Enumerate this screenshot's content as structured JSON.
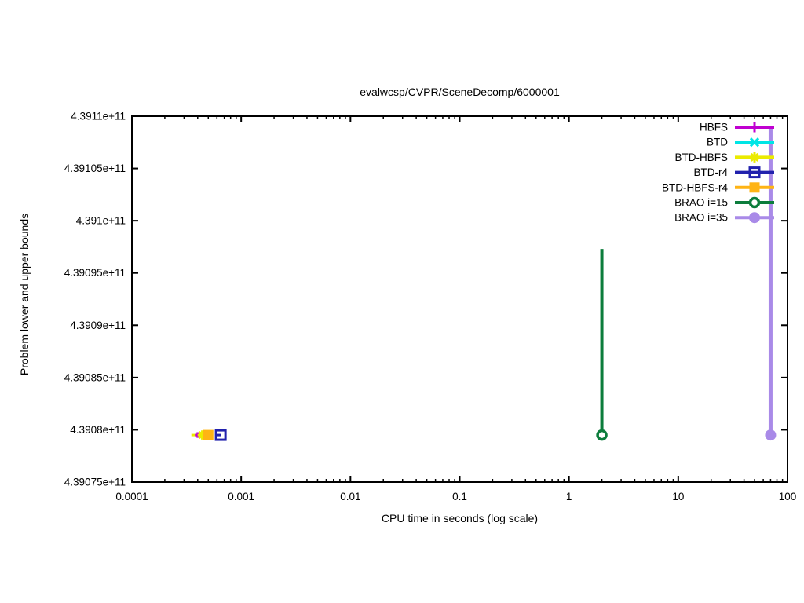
{
  "page": {
    "background": "#ffffff",
    "text_color": "#000000"
  },
  "chart_data": {
    "type": "line",
    "title": "evalwcsp/CVPR/SceneDecomp/6000001",
    "xlabel": "CPU time in seconds (log scale)",
    "ylabel": "Problem lower and upper bounds",
    "x_scale": "log",
    "y_scale": "linear",
    "xlim": [
      0.0001,
      100
    ],
    "ylim": [
      439075000000,
      439110000000
    ],
    "x_ticks": [
      0.0001,
      0.001,
      0.01,
      0.1,
      1,
      10,
      100
    ],
    "x_tick_labels": [
      "0.0001",
      "0.001",
      "0.01",
      "0.1",
      "1",
      "10",
      "100"
    ],
    "y_ticks": [
      439075000000,
      439080000000,
      439085000000,
      439090000000,
      439095000000,
      439100000000,
      439105000000,
      439110000000
    ],
    "y_tick_labels": [
      "4.39075e+11",
      "4.3908e+11",
      "4.39085e+11",
      "4.3909e+11",
      "4.39095e+11",
      "4.391e+11",
      "4.39105e+11",
      "4.3911e+11"
    ],
    "grid": false,
    "legend_position": "top-right-inside",
    "optimum_value": 439079500000,
    "series": [
      {
        "name": "HBFS",
        "color": "#c000d0",
        "marker": "plus",
        "point_size": 0.55,
        "line_width": 3,
        "points": [
          [
            0.0004,
            439079500000
          ]
        ],
        "h_segments": [],
        "v_segments": []
      },
      {
        "name": "BTD",
        "color": "#00e5e5",
        "marker": "x",
        "point_size": 1,
        "line_width": 3,
        "points": [],
        "h_segments": [],
        "v_segments": [],
        "note": "marker not visibly distinct; hidden behind cluster at ~0.0005 s"
      },
      {
        "name": "BTD-HBFS",
        "color": "#ebeb00",
        "marker": "asterisk",
        "point_size": 0.9,
        "line_width": 3,
        "points": [
          [
            0.00044,
            439079500000
          ]
        ],
        "h_segments": [
          [
            0.00035,
            0.00044,
            439079500000
          ]
        ],
        "v_segments": []
      },
      {
        "name": "BTD-r4",
        "color": "#2121ad",
        "marker": "square-open",
        "point_size": 1,
        "line_width": 3,
        "points": [
          [
            0.00065,
            439079500000
          ]
        ],
        "h_segments": [
          [
            0.00059,
            0.00065,
            439079500000
          ]
        ],
        "v_segments": []
      },
      {
        "name": "BTD-HBFS-r4",
        "color": "#ffb414",
        "marker": "square-filled",
        "point_size": 1,
        "line_width": 3,
        "points": [
          [
            0.0005,
            439079500000
          ]
        ],
        "h_segments": [],
        "v_segments": []
      },
      {
        "name": "BRAO i=15",
        "color": "#0c7d3c",
        "marker": "circle-open",
        "point_size": 1,
        "line_width": 4,
        "points": [
          [
            2.0,
            439079500000
          ]
        ],
        "h_segments": [],
        "v_segments": [
          [
            2.0,
            439079500000,
            439097300000
          ]
        ]
      },
      {
        "name": "BRAO i=35",
        "color": "#a98ae8",
        "marker": "circle-filled",
        "point_size": 1,
        "line_width": 5,
        "points": [
          [
            70,
            439079500000
          ]
        ],
        "h_segments": [],
        "v_segments": [
          [
            70,
            439079500000,
            439108800000
          ]
        ]
      }
    ]
  }
}
